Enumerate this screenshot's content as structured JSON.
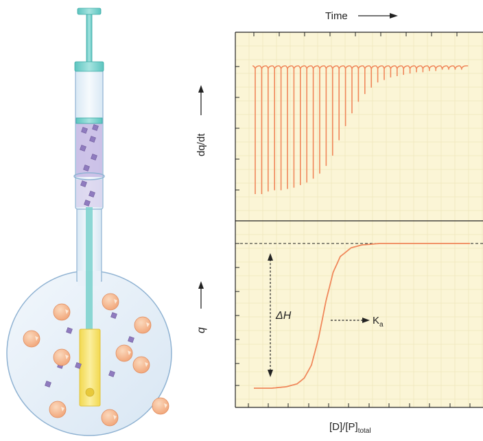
{
  "figure": {
    "x_axis_top": "Time",
    "y_axis_top": "dq/dt",
    "y_axis_bottom": "q",
    "delta_h_label": "ΔH",
    "ka_label": "K",
    "ka_subscript": "a",
    "x_axis_bottom_D": "[D]/[P]",
    "x_axis_bottom_sub": "total"
  },
  "colors": {
    "plot_background": "#fbf5d6",
    "grid": "#efe7bd",
    "curve": "#f0875a",
    "glass": "#e8f1f9",
    "glass_outline": "#8fb2d2",
    "plunger": "#79d1cc",
    "ligand_fill": "#c3b6e0",
    "cell": "#f7e37a",
    "protein": "#f8b990"
  },
  "chart_data": [
    {
      "type": "line",
      "description_panel": "top",
      "title": "",
      "xlabel": "Time",
      "ylabel": "dq/dt",
      "series": [
        {
          "values": [
            100,
            100,
            98,
            97,
            97,
            96,
            95,
            93,
            91,
            88,
            84,
            78,
            70,
            58,
            47,
            37,
            28,
            22,
            17,
            13,
            11,
            9,
            8,
            7,
            6,
            5,
            5,
            4,
            4,
            3,
            3,
            3,
            3
          ]
        }
      ],
      "ylim": [
        0,
        100
      ]
    },
    {
      "type": "line",
      "description_panel": "bottom",
      "title": "",
      "xlabel": "[D]/[P]total",
      "ylabel": "q",
      "series": [
        {
          "x": [
            0.0,
            0.5,
            0.9,
            1.2,
            1.4,
            1.6,
            1.8,
            2.0,
            2.2,
            2.4,
            2.7,
            3.0,
            3.5,
            4.0,
            5.0,
            6.0
          ],
          "values": [
            0.0,
            0.0,
            0.01,
            0.03,
            0.07,
            0.16,
            0.35,
            0.6,
            0.8,
            0.91,
            0.97,
            0.99,
            1.0,
            1.0,
            1.0,
            1.0
          ]
        }
      ],
      "annotations": [
        "ΔH",
        "Ka"
      ],
      "ylim": [
        0,
        1
      ]
    }
  ]
}
